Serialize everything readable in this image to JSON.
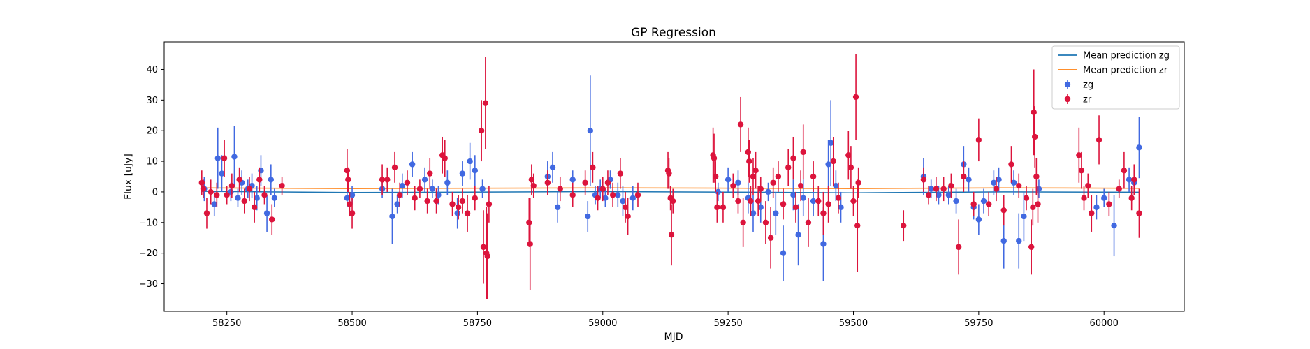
{
  "chart_data": {
    "type": "scatter",
    "title": "GP Regression",
    "xlabel": "MJD",
    "ylabel": "Flux [uJy]",
    "xlim": [
      58125,
      60160
    ],
    "ylim": [
      -39,
      49
    ],
    "xticks": [
      58250,
      58500,
      58750,
      59000,
      59250,
      59500,
      59750,
      60000
    ],
    "yticks": [
      -30,
      -20,
      -10,
      0,
      10,
      20,
      30,
      40
    ],
    "grid": false,
    "legend_position": "top-right",
    "lines": [
      {
        "name": "Mean prediction zg",
        "color": "#1f77b4",
        "x": [
          58200,
          58500,
          59000,
          59300,
          59500,
          59800,
          60070
        ],
        "y": [
          0.2,
          -0.2,
          0.1,
          -0.1,
          -0.3,
          0.0,
          -0.1
        ]
      },
      {
        "name": "Mean prediction zr",
        "color": "#ff7f0e",
        "x": [
          58200,
          58500,
          59000,
          59300,
          59500,
          59800,
          60070
        ],
        "y": [
          1.3,
          1.1,
          1.3,
          1.2,
          1.1,
          1.3,
          1.2
        ]
      }
    ],
    "series": [
      {
        "name": "zg",
        "color": "#4169e1",
        "points": [
          [
            58205,
            1,
            4
          ],
          [
            58225,
            -4,
            4
          ],
          [
            58232,
            11,
            10
          ],
          [
            58240,
            6,
            6
          ],
          [
            58258,
            0,
            3
          ],
          [
            58265,
            11.5,
            10
          ],
          [
            58272,
            -2,
            3
          ],
          [
            58280,
            3,
            4
          ],
          [
            58292,
            1,
            3
          ],
          [
            58300,
            2,
            4
          ],
          [
            58310,
            -2,
            4
          ],
          [
            58318,
            7,
            5
          ],
          [
            58330,
            -7,
            6
          ],
          [
            58338,
            4,
            5
          ],
          [
            58345,
            -2,
            3
          ],
          [
            58490,
            -2,
            3
          ],
          [
            58500,
            -1,
            3
          ],
          [
            58560,
            1,
            3
          ],
          [
            58580,
            -8,
            9
          ],
          [
            58590,
            -4,
            3
          ],
          [
            58600,
            2,
            4
          ],
          [
            58620,
            9,
            4
          ],
          [
            58645,
            4,
            4
          ],
          [
            58660,
            1,
            3
          ],
          [
            58672,
            -1,
            3
          ],
          [
            58690,
            3,
            4
          ],
          [
            58710,
            -7,
            5
          ],
          [
            58720,
            6,
            4
          ],
          [
            58735,
            10,
            6
          ],
          [
            58745,
            7,
            5
          ],
          [
            58760,
            1,
            3
          ],
          [
            58890,
            5,
            5
          ],
          [
            58900,
            8,
            5
          ],
          [
            58910,
            -5,
            5
          ],
          [
            58940,
            4,
            3
          ],
          [
            58970,
            -8,
            5
          ],
          [
            58975,
            20,
            18
          ],
          [
            58985,
            -1,
            3
          ],
          [
            58995,
            1,
            3
          ],
          [
            59005,
            -2,
            3
          ],
          [
            59015,
            4,
            3
          ],
          [
            59030,
            -1,
            4
          ],
          [
            59040,
            -3,
            5
          ],
          [
            59060,
            -2,
            4
          ],
          [
            59230,
            0,
            3
          ],
          [
            59250,
            4,
            4
          ],
          [
            59270,
            3,
            4
          ],
          [
            59290,
            -2,
            5
          ],
          [
            59300,
            -7,
            6
          ],
          [
            59315,
            -5,
            5
          ],
          [
            59330,
            0,
            3
          ],
          [
            59345,
            -7,
            7
          ],
          [
            59360,
            -20,
            9
          ],
          [
            59380,
            -1,
            5
          ],
          [
            59390,
            -14,
            10
          ],
          [
            59400,
            -2,
            6
          ],
          [
            59420,
            -3,
            5
          ],
          [
            59440,
            -17,
            12
          ],
          [
            59450,
            9,
            8
          ],
          [
            59455,
            16,
            14
          ],
          [
            59465,
            2,
            5
          ],
          [
            59475,
            -5,
            5
          ],
          [
            59640,
            5,
            6
          ],
          [
            59655,
            1,
            3
          ],
          [
            59670,
            -1,
            3
          ],
          [
            59690,
            -1,
            3
          ],
          [
            59705,
            -3,
            4
          ],
          [
            59720,
            9,
            6
          ],
          [
            59730,
            4,
            4
          ],
          [
            59740,
            -5,
            4
          ],
          [
            59750,
            -9,
            5
          ],
          [
            59760,
            -3,
            4
          ],
          [
            59780,
            3,
            4
          ],
          [
            59790,
            4,
            4
          ],
          [
            59800,
            -16,
            9
          ],
          [
            59820,
            3,
            4
          ],
          [
            59830,
            -16,
            9
          ],
          [
            59840,
            -8,
            8
          ],
          [
            59870,
            1,
            3
          ],
          [
            59985,
            -5,
            4
          ],
          [
            60000,
            -2,
            3
          ],
          [
            60020,
            -11,
            10
          ],
          [
            60050,
            4,
            4
          ],
          [
            60060,
            3,
            4
          ],
          [
            60070,
            14.5,
            10
          ]
        ]
      },
      {
        "name": "zr",
        "color": "#dc143c",
        "points": [
          [
            58200,
            3,
            4
          ],
          [
            58203,
            1,
            3
          ],
          [
            58210,
            -7,
            5
          ],
          [
            58218,
            0,
            4
          ],
          [
            58230,
            -1,
            4
          ],
          [
            58245,
            11,
            6
          ],
          [
            58250,
            -1,
            3
          ],
          [
            58260,
            2,
            4
          ],
          [
            58275,
            4,
            4
          ],
          [
            58285,
            -3,
            4
          ],
          [
            58295,
            1,
            4
          ],
          [
            58305,
            -5,
            5
          ],
          [
            58315,
            4,
            4
          ],
          [
            58325,
            -1,
            3
          ],
          [
            58340,
            -9,
            5
          ],
          [
            58360,
            2,
            3
          ],
          [
            58490,
            7,
            7
          ],
          [
            58492,
            4,
            4
          ],
          [
            58495,
            -4,
            4
          ],
          [
            58500,
            -7,
            5
          ],
          [
            58560,
            4,
            5
          ],
          [
            58570,
            4,
            4
          ],
          [
            58585,
            8,
            5
          ],
          [
            58595,
            -1,
            4
          ],
          [
            58610,
            3,
            4
          ],
          [
            58625,
            -2,
            4
          ],
          [
            58635,
            1,
            3
          ],
          [
            58650,
            -3,
            4
          ],
          [
            58655,
            6,
            5
          ],
          [
            58668,
            -3,
            4
          ],
          [
            58680,
            12,
            6
          ],
          [
            58685,
            11,
            6
          ],
          [
            58700,
            -4,
            4
          ],
          [
            58712,
            -5,
            4
          ],
          [
            58720,
            -3,
            4
          ],
          [
            58730,
            -7,
            6
          ],
          [
            58745,
            -2,
            4
          ],
          [
            58758,
            20,
            10
          ],
          [
            58762,
            -18,
            12
          ],
          [
            58766,
            29,
            15
          ],
          [
            58768,
            -20,
            15
          ],
          [
            58770,
            -21,
            14
          ],
          [
            58773,
            -4,
            6
          ],
          [
            58853,
            -10,
            8
          ],
          [
            58855,
            -17,
            15
          ],
          [
            58858,
            4,
            5
          ],
          [
            58862,
            2,
            4
          ],
          [
            58890,
            3,
            4
          ],
          [
            58915,
            1,
            4
          ],
          [
            58940,
            -1,
            4
          ],
          [
            58965,
            3,
            4
          ],
          [
            58980,
            8,
            5
          ],
          [
            58990,
            -2,
            4
          ],
          [
            59000,
            1,
            4
          ],
          [
            59010,
            3,
            4
          ],
          [
            59020,
            -1,
            4
          ],
          [
            59035,
            6,
            5
          ],
          [
            59045,
            -5,
            5
          ],
          [
            59050,
            -8,
            6
          ],
          [
            59070,
            -1,
            4
          ],
          [
            59130,
            7,
            6
          ],
          [
            59132,
            6,
            5
          ],
          [
            59135,
            -2,
            4
          ],
          [
            59137,
            -14,
            10
          ],
          [
            59140,
            -3,
            4
          ],
          [
            59220,
            12,
            9
          ],
          [
            59222,
            11,
            8
          ],
          [
            59225,
            5,
            5
          ],
          [
            59228,
            -5,
            5
          ],
          [
            59240,
            -5,
            5
          ],
          [
            59260,
            2,
            4
          ],
          [
            59270,
            -3,
            4
          ],
          [
            59275,
            22,
            9
          ],
          [
            59280,
            -10,
            8
          ],
          [
            59290,
            13,
            8
          ],
          [
            59292,
            10,
            7
          ],
          [
            59295,
            -3,
            5
          ],
          [
            59300,
            5,
            6
          ],
          [
            59305,
            7,
            6
          ],
          [
            59310,
            -3,
            5
          ],
          [
            59315,
            1,
            4
          ],
          [
            59325,
            -10,
            7
          ],
          [
            59335,
            -15,
            10
          ],
          [
            59340,
            3,
            5
          ],
          [
            59350,
            5,
            5
          ],
          [
            59360,
            -4,
            5
          ],
          [
            59370,
            8,
            6
          ],
          [
            59380,
            11,
            7
          ],
          [
            59385,
            -5,
            5
          ],
          [
            59395,
            2,
            5
          ],
          [
            59400,
            13,
            9
          ],
          [
            59410,
            -10,
            8
          ],
          [
            59420,
            5,
            5
          ],
          [
            59430,
            -3,
            5
          ],
          [
            59440,
            -7,
            7
          ],
          [
            59450,
            -4,
            6
          ],
          [
            59460,
            10,
            8
          ],
          [
            59470,
            -2,
            5
          ],
          [
            59490,
            12,
            8
          ],
          [
            59495,
            8,
            7
          ],
          [
            59500,
            -3,
            5
          ],
          [
            59505,
            31,
            14
          ],
          [
            59508,
            -11,
            15
          ],
          [
            59510,
            3,
            5
          ],
          [
            59600,
            -11,
            5
          ],
          [
            59640,
            4,
            4
          ],
          [
            59650,
            -1,
            3
          ],
          [
            59665,
            1,
            4
          ],
          [
            59680,
            1,
            4
          ],
          [
            59695,
            2,
            4
          ],
          [
            59710,
            -18,
            9
          ],
          [
            59720,
            5,
            5
          ],
          [
            59740,
            -4,
            4
          ],
          [
            59750,
            17,
            7
          ],
          [
            59770,
            -4,
            4
          ],
          [
            59785,
            1,
            4
          ],
          [
            59800,
            -6,
            5
          ],
          [
            59815,
            9,
            6
          ],
          [
            59830,
            2,
            4
          ],
          [
            59845,
            -2,
            4
          ],
          [
            59855,
            -18,
            9
          ],
          [
            59858,
            -5,
            6
          ],
          [
            59860,
            26,
            14
          ],
          [
            59862,
            18,
            10
          ],
          [
            59865,
            5,
            6
          ],
          [
            59868,
            -4,
            6
          ],
          [
            59950,
            12,
            9
          ],
          [
            59955,
            7,
            6
          ],
          [
            59960,
            -2,
            4
          ],
          [
            59968,
            2,
            4
          ],
          [
            59975,
            -7,
            6
          ],
          [
            59990,
            17,
            8
          ],
          [
            60010,
            -4,
            4
          ],
          [
            60030,
            1,
            3
          ],
          [
            60040,
            7,
            6
          ],
          [
            60055,
            -2,
            4
          ],
          [
            60060,
            4,
            5
          ],
          [
            60070,
            -7,
            8
          ]
        ]
      }
    ]
  }
}
